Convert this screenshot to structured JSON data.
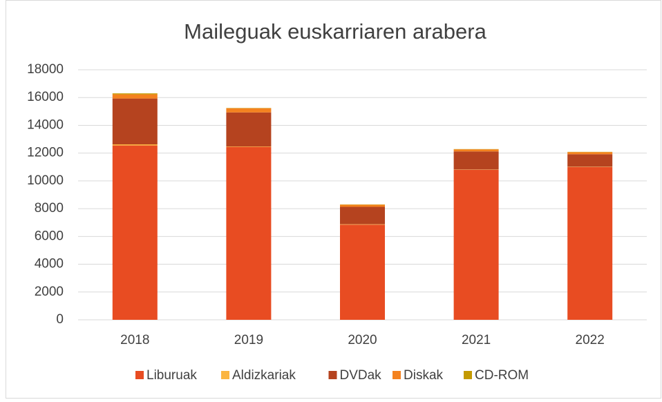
{
  "chart_data": {
    "type": "stacked_bar",
    "title": "Maileguak euskarriaren arabera",
    "categories": [
      "2018",
      "2019",
      "2020",
      "2021",
      "2022"
    ],
    "series": [
      {
        "name": "Liburuak",
        "color": "#e84c22",
        "values": [
          12550,
          12450,
          6850,
          10800,
          11000
        ]
      },
      {
        "name": "Aldizkariak",
        "color": "#fbb540",
        "values": [
          80,
          30,
          30,
          20,
          20
        ]
      },
      {
        "name": "DVDak",
        "color": "#b5431f",
        "values": [
          3300,
          2450,
          1250,
          1300,
          900
        ]
      },
      {
        "name": "Diskak",
        "color": "#f4821f",
        "values": [
          300,
          300,
          150,
          150,
          150
        ]
      },
      {
        "name": "CD-ROM",
        "color": "#c49a00",
        "values": [
          70,
          20,
          20,
          20,
          20
        ]
      }
    ],
    "ylim": [
      0,
      18000
    ],
    "yticks": [
      0,
      2000,
      4000,
      6000,
      8000,
      10000,
      12000,
      14000,
      16000,
      18000
    ],
    "grid": true,
    "legend": "bottom"
  }
}
